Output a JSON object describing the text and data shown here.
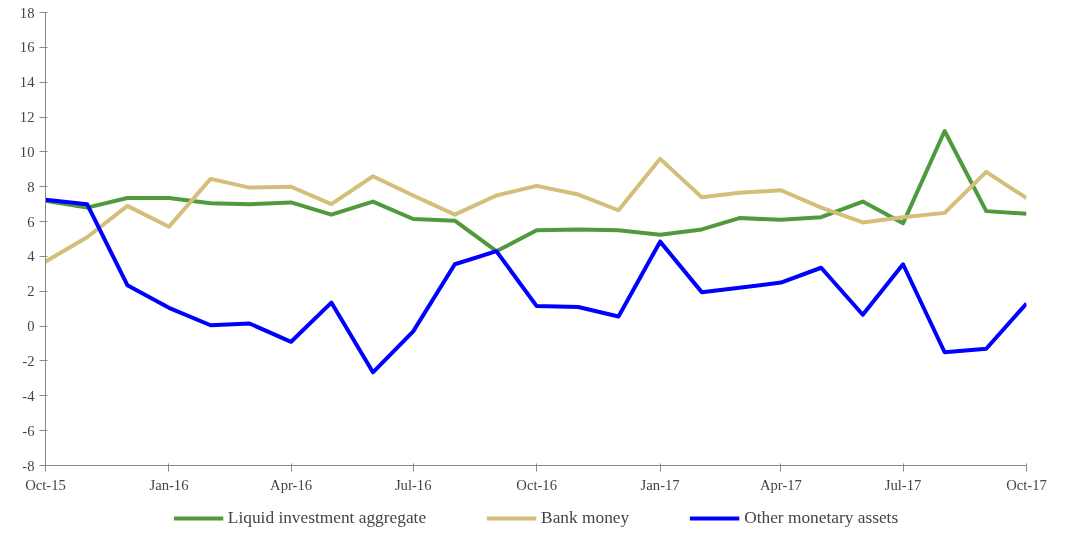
{
  "chart_data": {
    "type": "line",
    "x": [
      "2015-10",
      "2015-11",
      "2015-12",
      "2016-01",
      "2016-02",
      "2016-03",
      "2016-04",
      "2016-05",
      "2016-06",
      "2016-07",
      "2016-08",
      "2016-09",
      "2016-10",
      "2016-11",
      "2016-12",
      "2017-01",
      "2017-02",
      "2017-03",
      "2017-04",
      "2017-05",
      "2017-06",
      "2017-07",
      "2017-08",
      "2017-09",
      "2017-10"
    ],
    "series": [
      {
        "name": "Liquid investment aggregate",
        "color": "#4e9a3c",
        "values": [
          7.2,
          6.8,
          7.35,
          7.35,
          7.05,
          7.0,
          7.1,
          6.4,
          7.15,
          6.15,
          6.05,
          4.3,
          5.5,
          5.55,
          5.5,
          5.25,
          5.55,
          6.2,
          6.1,
          6.25,
          7.15,
          5.9,
          11.2,
          6.6,
          6.45
        ]
      },
      {
        "name": "Bank money",
        "color": "#d4bf7a",
        "values": [
          3.7,
          5.1,
          6.9,
          5.7,
          8.45,
          7.95,
          8.0,
          7.0,
          8.6,
          7.5,
          6.4,
          7.5,
          8.05,
          7.55,
          6.65,
          9.6,
          7.4,
          7.65,
          7.8,
          6.8,
          5.95,
          6.25,
          6.5,
          8.85,
          7.35
        ]
      },
      {
        "name": "Other monetary assets",
        "color": "#0000ff",
        "values": [
          7.25,
          7.0,
          2.35,
          1.05,
          0.05,
          0.15,
          -0.9,
          1.35,
          -2.65,
          -0.3,
          3.55,
          4.3,
          1.15,
          1.1,
          0.55,
          4.85,
          1.95,
          2.2,
          2.5,
          3.35,
          0.65,
          3.55,
          -1.5,
          -1.3,
          1.3
        ]
      }
    ],
    "xlim": [
      "2015-10",
      "2017-10"
    ],
    "xticks": [
      {
        "value": "2015-10",
        "label": "Oct-15"
      },
      {
        "value": "2016-01",
        "label": "Jan-16"
      },
      {
        "value": "2016-04",
        "label": "Apr-16"
      },
      {
        "value": "2016-07",
        "label": "Jul-16"
      },
      {
        "value": "2016-10",
        "label": "Oct-16"
      },
      {
        "value": "2017-01",
        "label": "Jan-17"
      },
      {
        "value": "2017-04",
        "label": "Apr-17"
      },
      {
        "value": "2017-07",
        "label": "Jul-17"
      },
      {
        "value": "2017-10",
        "label": "Oct-17"
      }
    ],
    "ylim": [
      -8,
      18
    ],
    "yticks": [
      -8,
      -6,
      -4,
      -2,
      0,
      2,
      4,
      6,
      8,
      10,
      12,
      14,
      16,
      18
    ],
    "grid": false,
    "legend": "bottom",
    "marker": "none",
    "line_style": "solid"
  }
}
